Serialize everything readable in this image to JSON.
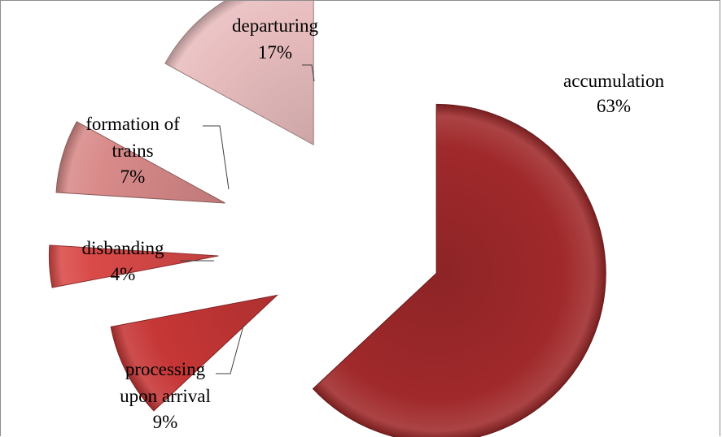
{
  "chart_data": {
    "type": "pie",
    "exploded": true,
    "style": "3d-bevel",
    "slices": [
      {
        "label": "accumulation",
        "value": 63,
        "value_label": "63%",
        "color": "#a0292b"
      },
      {
        "label": "processing upon arrival",
        "value": 9,
        "value_label": "9%",
        "color": "#c63636"
      },
      {
        "label": "disbanding",
        "value": 4,
        "value_label": "4%",
        "color": "#d94a48"
      },
      {
        "label": "formation of trains",
        "value": 7,
        "value_label": "7%",
        "color": "#d88a89"
      },
      {
        "label": "departuring",
        "value": 17,
        "value_label": "17%",
        "color": "#e8bdbe"
      }
    ]
  }
}
